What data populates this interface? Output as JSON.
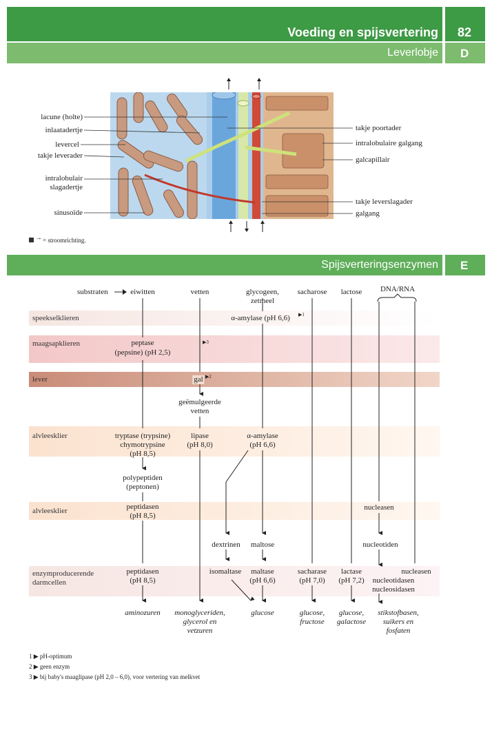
{
  "header": {
    "title": "Voeding en spijsvertering",
    "page_number": "82",
    "subtitle": "Leverlobje",
    "section_d": "D",
    "section_e_title": "Spijsverteringsenzymen",
    "section_e": "E"
  },
  "liver": {
    "left_labels": [
      "lacune (holte)",
      "inlaatadertje",
      "levercel",
      "takje leverader",
      "intralobulair",
      "slagadertje",
      "sinusoïde"
    ],
    "right_labels": [
      "takje poortader",
      "intralobulaire galgang",
      "galcapillair",
      "takje leverslagader",
      "galgang"
    ],
    "legend": "= stroomrichting."
  },
  "enzymes": {
    "header": {
      "substraten": "substraten",
      "arrow": "→",
      "eiwitten": "eiwitten",
      "vetten": "vetten",
      "glycogeen": "glycogeen,",
      "zetmeel": "zetmeel",
      "sacharose": "sacharose",
      "lactose": "lactose",
      "dna_rna": "DNA/RNA"
    },
    "rows": {
      "speekselklieren": "speekselklieren",
      "maagsapklieren": "maagsapklieren",
      "lever": "lever",
      "alvleesklier1": "alvleesklier",
      "alvleesklier2": "alvleesklier",
      "enzym1": "enzymproducerende",
      "enzym2": "darmcellen"
    },
    "cells": {
      "amylase_speeksel": "α-amylase (pH 6,6)",
      "note1": "1",
      "peptase": "peptase",
      "pepsine": "(pepsine) (pH 2,5)",
      "note3": "3",
      "gal": "gal",
      "note2": "2",
      "geemulgeerde": "geëmulgeerde",
      "vetten": "vetten",
      "tryptase": "tryptase (trypsine)",
      "chymotrypsine": "chymotrypsine",
      "ph85a": "(pH 8,5)",
      "lipase": "lipase",
      "ph80": "(pH 8,0)",
      "amylase_alv": "α-amylase",
      "ph66a": "(pH 6,6)",
      "polypeptiden": "polypeptiden",
      "peptonen": "(peptonen)",
      "peptidasen1": "peptidasen",
      "ph85b": "(pH 8,5)",
      "nucleasen1": "nucleasen",
      "dextrinen": "dextrinen",
      "maltose": "maltose",
      "nucleotiden": "nucleotiden",
      "peptidasen2": "peptidasen",
      "ph85c": "(pH 8,5)",
      "isomaltase": "isomaltase",
      "maltase": "maltase",
      "ph66b": "(pH 6,6)",
      "sacharase": "sacharase",
      "ph70": "(pH 7,0)",
      "lactase": "lactase",
      "ph72": "(pH 7,2)",
      "nucleasen2": "nucleasen",
      "nucleotidasen": "nucleotidasen",
      "nucleosidasen": "nucleosidasen"
    },
    "products": {
      "aminozuren": "aminozuren",
      "monogly1": "monoglyceriden,",
      "monogly2": "glycerol en",
      "monogly3": "vetzuren",
      "glucose": "glucose",
      "gf1": "glucose,",
      "gf2": "fructose",
      "gg1": "glucose,",
      "gg2": "galactose",
      "st1": "stikstofbasen,",
      "st2": "suikers en",
      "st3": "fosfaten"
    }
  },
  "footnotes": {
    "n1": "1",
    "t1": "pH-optimum",
    "n2": "2",
    "t2": "geen enzym",
    "n3": "3",
    "t3": "bij baby's maaglipase (pH 2,0 – 6,0), voor vertering van melkvet"
  },
  "colors": {
    "green_dark": "#3d9a45",
    "green_light": "#7dbb6e",
    "green_mid": "#5fae5a",
    "row_pink": "#f6d3d3",
    "row_brown": "#c98c78",
    "row_peach": "#fbe2cf",
    "row_beige": "#f6e6e2"
  }
}
